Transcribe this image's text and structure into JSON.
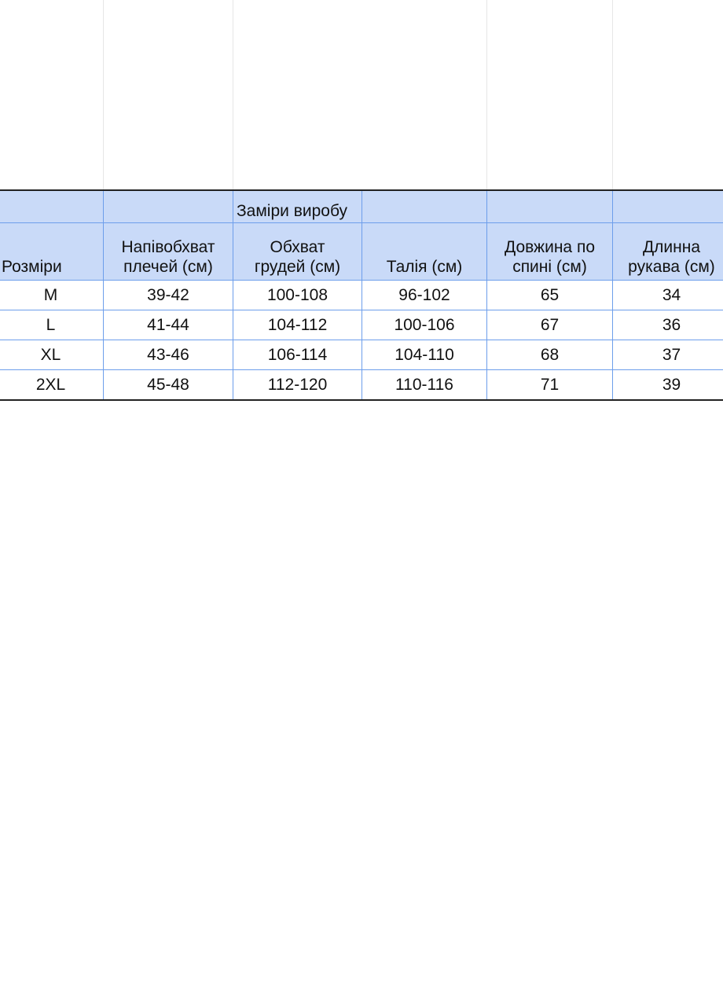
{
  "table": {
    "group_header": "Заміри виробу",
    "headers": [
      [
        "Розміри"
      ],
      [
        "Напівобхват",
        "плечей (см)"
      ],
      [
        "Обхват",
        "грудей (см)"
      ],
      [
        "Талія (см)"
      ],
      [
        "Довжина по",
        "спині (см)"
      ],
      [
        "Длинна",
        "рукава (см)"
      ]
    ],
    "rows": [
      [
        "M",
        "39-42",
        "100-108",
        "96-102",
        "65",
        "34"
      ],
      [
        "L",
        "41-44",
        "104-112",
        "100-106",
        "67",
        "36"
      ],
      [
        "XL",
        "43-46",
        "106-114",
        "104-110",
        "68",
        "37"
      ],
      [
        "2XL",
        "45-48",
        "112-120",
        "110-116",
        "71",
        "39"
      ]
    ],
    "colors": {
      "header_bg": "#c9daf8",
      "grid": "#6d9eeb"
    }
  }
}
